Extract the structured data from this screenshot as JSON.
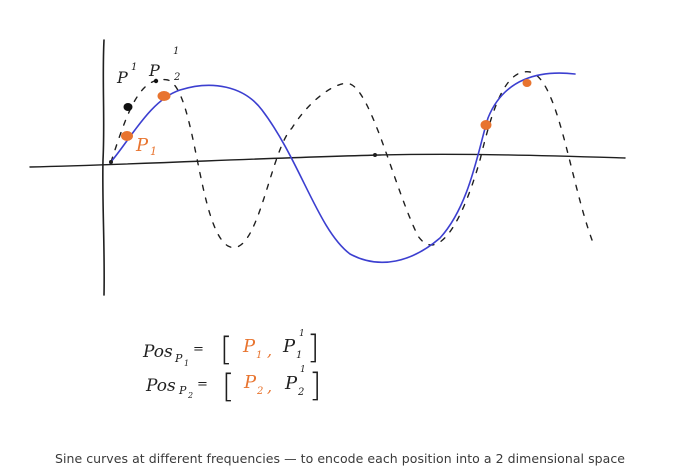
{
  "colors": {
    "ink": "#1f1f1f",
    "blue_curve": "#3c3fd0",
    "orange_points": "#e8742f",
    "caption_text": "#3a3a3a"
  },
  "diagram": {
    "point_labels": {
      "p1": "P",
      "p1_sub": "1",
      "p1_prime_black": "P",
      "p1_prime_black_sup": "1",
      "p2_prime_black": "P",
      "p2_prime_black_sup": "1",
      "p2_prime_black_sub": "2"
    },
    "equations": [
      {
        "lhs": "Pos",
        "lhs_sub": "P",
        "lhs_sub_index": "1",
        "equals": "=",
        "open_bracket": "[",
        "first": "P",
        "first_sub": "1",
        "separator": ",",
        "second": "P",
        "second_sub": "1",
        "second_sup": "1",
        "close_bracket": "]"
      },
      {
        "lhs": "Pos",
        "lhs_sub": "P",
        "lhs_sub_index": "2",
        "equals": "=",
        "open_bracket": "[",
        "first": "P",
        "first_sub": "2",
        "separator": ",",
        "second": "P",
        "second_sub": "2",
        "second_sup": "1",
        "close_bracket": "]"
      }
    ]
  },
  "caption": "Sine curves at different frequencies — to encode each position into a 2 dimensional space"
}
